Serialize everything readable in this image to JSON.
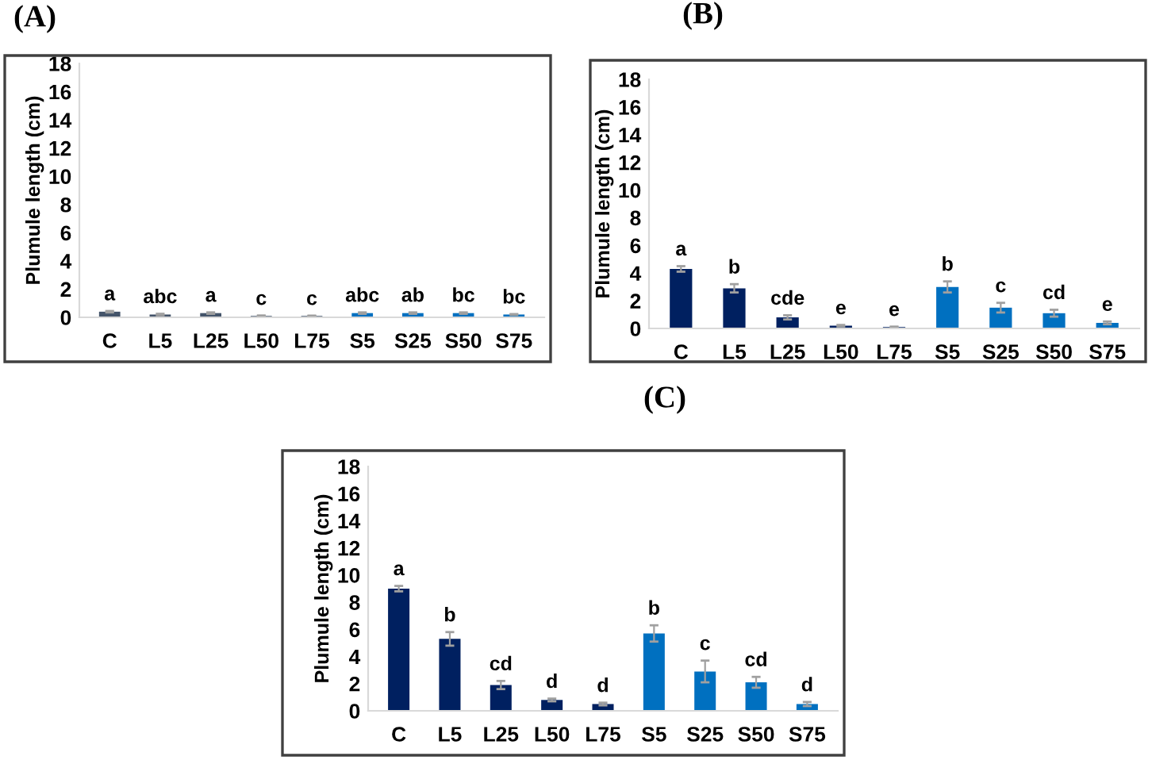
{
  "chart_data": [
    {
      "type": "bar",
      "title": "(A)",
      "ylabel": "Plumule length (cm)",
      "categories": [
        "C",
        "L5",
        "L25",
        "L50",
        "L75",
        "S5",
        "S25",
        "S50",
        "S75"
      ],
      "values": [
        0.4,
        0.2,
        0.3,
        0.1,
        0.1,
        0.3,
        0.3,
        0.3,
        0.2
      ],
      "errors": [
        0.05,
        0.05,
        0.05,
        0.03,
        0.02,
        0.05,
        0.05,
        0.05,
        0.03
      ],
      "colors": [
        "#44546a",
        "#44546a",
        "#44546a",
        "#44546a",
        "#44546a",
        "#0070c0",
        "#0070c0",
        "#0070c0",
        "#0070c0"
      ],
      "value_labels": [
        "a",
        "abc",
        "a",
        "c",
        "c",
        "abc",
        "ab",
        "bc",
        "bc"
      ],
      "ylim": [
        0,
        18
      ],
      "yticks": [
        0,
        2,
        4,
        6,
        8,
        10,
        12,
        14,
        16,
        18
      ],
      "grid": false,
      "legend": false
    },
    {
      "type": "bar",
      "title": "(B)",
      "ylabel": "Plumule length (cm)",
      "categories": [
        "C",
        "L5",
        "L25",
        "L50",
        "L75",
        "S5",
        "S25",
        "S50",
        "S75"
      ],
      "values": [
        4.3,
        2.9,
        0.8,
        0.2,
        0.1,
        3.0,
        1.5,
        1.1,
        0.4
      ],
      "errors": [
        0.2,
        0.3,
        0.15,
        0.05,
        0.03,
        0.4,
        0.35,
        0.25,
        0.1
      ],
      "colors": [
        "#002060",
        "#002060",
        "#002060",
        "#002060",
        "#002060",
        "#0070c0",
        "#0070c0",
        "#0070c0",
        "#0070c0"
      ],
      "value_labels": [
        "a",
        "b",
        "cde",
        "e",
        "e",
        "b",
        "c",
        "cd",
        "e"
      ],
      "ylim": [
        0,
        18
      ],
      "yticks": [
        0,
        2,
        4,
        6,
        8,
        10,
        12,
        14,
        16,
        18
      ],
      "grid": false,
      "legend": false
    },
    {
      "type": "bar",
      "title": "(C)",
      "ylabel": "Plumule length (cm)",
      "categories": [
        "C",
        "L5",
        "L25",
        "L50",
        "L75",
        "S5",
        "S25",
        "S50",
        "S75"
      ],
      "values": [
        9.0,
        5.3,
        1.9,
        0.8,
        0.5,
        5.7,
        2.9,
        2.1,
        0.5
      ],
      "errors": [
        0.2,
        0.5,
        0.3,
        0.1,
        0.1,
        0.6,
        0.8,
        0.4,
        0.15
      ],
      "colors": [
        "#002060",
        "#002060",
        "#002060",
        "#002060",
        "#002060",
        "#0070c0",
        "#0070c0",
        "#0070c0",
        "#0070c0"
      ],
      "value_labels": [
        "a",
        "b",
        "cd",
        "d",
        "d",
        "b",
        "c",
        "cd",
        "d"
      ],
      "ylim": [
        0,
        18
      ],
      "yticks": [
        0,
        2,
        4,
        6,
        8,
        10,
        12,
        14,
        16,
        18
      ],
      "grid": false,
      "legend": false
    }
  ]
}
